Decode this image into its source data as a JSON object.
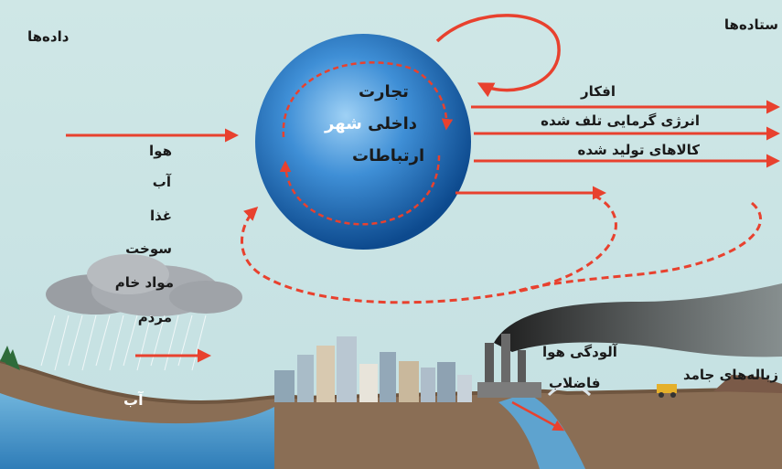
{
  "headings": {
    "inputs": "داده‌ها",
    "outputs": "ستاده‌ها"
  },
  "city": {
    "line1": "تجارت",
    "line2_prefix": "داخلی",
    "line2_highlight": "شهر",
    "line3": "ارتباطات"
  },
  "inputs": [
    "هوا",
    "آب",
    "غذا",
    "سوخت",
    "مواد خام",
    "مردم"
  ],
  "water_input": "آب",
  "outputs": [
    "افکار",
    "انرژی گرمایی تلف شده",
    "کالاهای تولید شده"
  ],
  "pollution": {
    "air": "آلودگی هوا",
    "sewage": "فاضلاب",
    "solid_waste": "زباله‌های جامد"
  },
  "colors": {
    "sky": "#c8e3e3",
    "arrow": "#e8412e",
    "sphere": "#1f6fb8",
    "highlight": "#ffffff",
    "ground": "#8a6e55",
    "water": "#3d8fc4"
  }
}
